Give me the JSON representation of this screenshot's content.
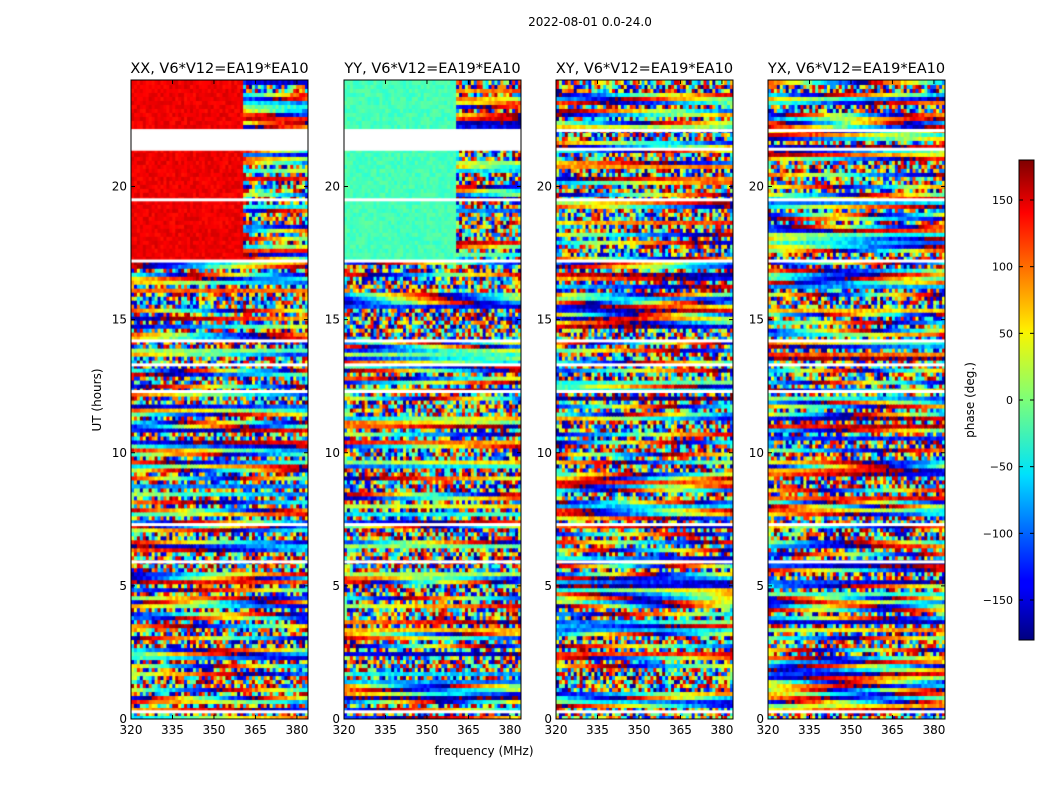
{
  "figure": {
    "suptitle": "2022-08-01 0.0-24.0",
    "xlabel": "frequency (MHz)",
    "ylabel": "UT (hours)",
    "colorbar": {
      "label": "phase (deg.)",
      "ticks": [
        150,
        100,
        50,
        0,
        -50,
        -100,
        -150
      ],
      "tick_labels": [
        "150",
        "100",
        "50",
        "0",
        "−50",
        "−100",
        "−150"
      ],
      "range": [
        -180,
        180
      ],
      "colormap": "jet"
    }
  },
  "chart_data": [
    {
      "type": "heatmap",
      "title": "XX, V6*V12=EA19*EA10",
      "x_ticks": [
        320,
        335,
        350,
        365,
        380
      ],
      "x_tick_labels": [
        "320",
        "335",
        "350",
        "365",
        "380"
      ],
      "y_ticks": [
        0,
        5,
        10,
        15,
        20
      ],
      "y_tick_labels": [
        "0",
        "5",
        "10",
        "15",
        "20"
      ],
      "xlim": [
        320,
        384
      ],
      "ylim": [
        0,
        24
      ],
      "value": "phase (deg.)",
      "smooth_region": {
        "x_range": [
          320,
          361
        ],
        "y_range": [
          17.2,
          24
        ],
        "phase": 140
      },
      "gaps_hours": [
        0.27,
        5.9,
        7.3,
        12.3,
        13.3,
        14.2,
        17.2,
        19.5,
        21.4,
        22.1
      ]
    },
    {
      "type": "heatmap",
      "title": "YY, V6*V12=EA19*EA10",
      "x_ticks": [
        320,
        335,
        350,
        365,
        380
      ],
      "x_tick_labels": [
        "320",
        "335",
        "350",
        "365",
        "380"
      ],
      "y_ticks": [
        0,
        5,
        10,
        15,
        20
      ],
      "y_tick_labels": [
        "0",
        "5",
        "10",
        "15",
        "20"
      ],
      "xlim": [
        320,
        384
      ],
      "ylim": [
        0,
        24
      ],
      "value": "phase (deg.)",
      "smooth_region": {
        "x_range": [
          320,
          361
        ],
        "y_range": [
          17.2,
          24
        ],
        "phase": -20
      },
      "gaps_hours": [
        0.27,
        5.9,
        7.3,
        12.3,
        13.3,
        14.2,
        17.2,
        19.5,
        21.4,
        22.1
      ]
    },
    {
      "type": "heatmap",
      "title": "XY, V6*V12=EA19*EA10",
      "x_ticks": [
        320,
        335,
        350,
        365,
        380
      ],
      "x_tick_labels": [
        "320",
        "335",
        "350",
        "365",
        "380"
      ],
      "y_ticks": [
        0,
        5,
        10,
        15,
        20
      ],
      "y_tick_labels": [
        "0",
        "5",
        "10",
        "15",
        "20"
      ],
      "xlim": [
        320,
        384
      ],
      "ylim": [
        0,
        24
      ],
      "value": "phase (deg.)",
      "smooth_region": null,
      "gaps_hours": [
        0.27,
        5.9,
        7.3,
        12.3,
        13.3,
        14.2,
        17.2,
        19.5,
        21.4,
        22.1
      ]
    },
    {
      "type": "heatmap",
      "title": "YX, V6*V12=EA19*EA10",
      "x_ticks": [
        320,
        335,
        350,
        365,
        380
      ],
      "x_tick_labels": [
        "320",
        "335",
        "350",
        "365",
        "380"
      ],
      "y_ticks": [
        0,
        5,
        10,
        15,
        20
      ],
      "y_tick_labels": [
        "0",
        "5",
        "10",
        "15",
        "20"
      ],
      "xlim": [
        320,
        384
      ],
      "ylim": [
        0,
        24
      ],
      "value": "phase (deg.)",
      "smooth_region": null,
      "gaps_hours": [
        0.27,
        5.9,
        7.3,
        12.3,
        13.3,
        14.2,
        17.2,
        19.5,
        21.4,
        22.1
      ]
    }
  ]
}
